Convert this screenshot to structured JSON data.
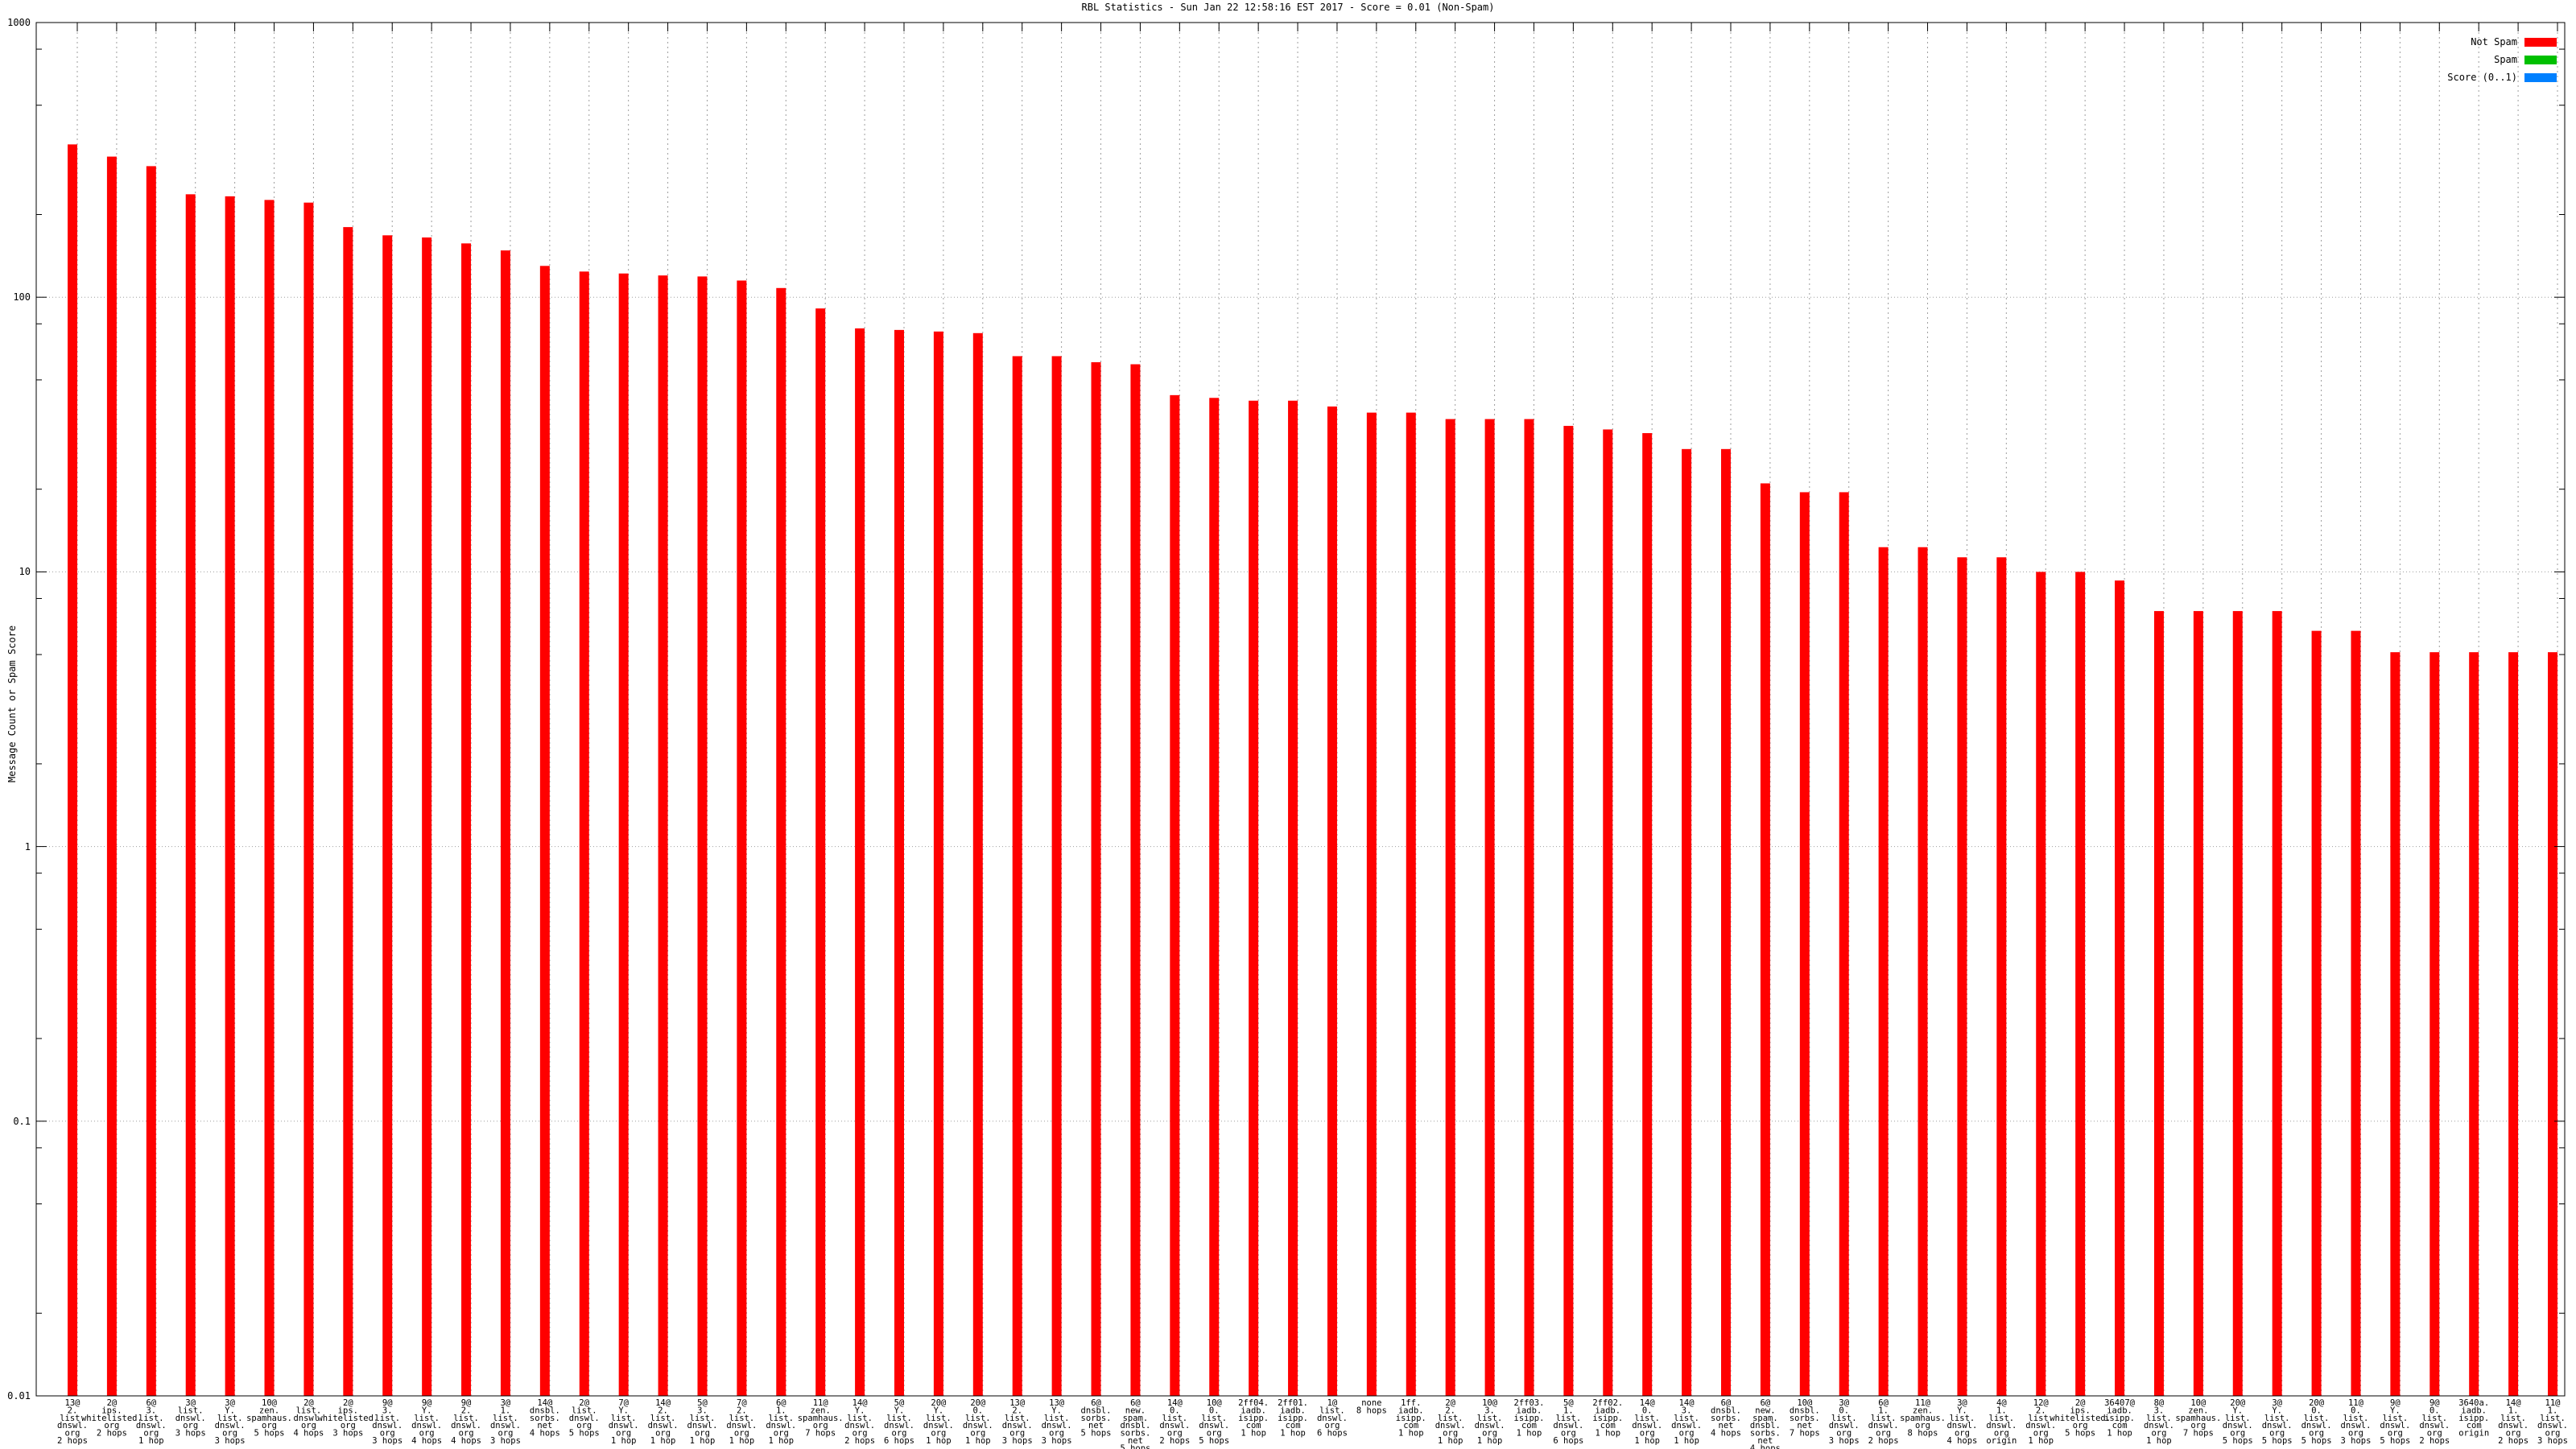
{
  "title": "RBL Statistics - Sun Jan 22 12:58:16 EST 2017 - Score = 0.01 (Non-Spam)",
  "y_axis": {
    "label": "Message Count or Spam Score",
    "ticks": [
      "1000",
      "100",
      "10",
      "1",
      "0.1",
      "0.01"
    ]
  },
  "legend": [
    {
      "label": "Not Spam",
      "color": "#ff0000"
    },
    {
      "label": "Spam",
      "color": "#00c000"
    },
    {
      "label": "Score (0..1)",
      "color": "#0080ff"
    }
  ],
  "chart_data": {
    "type": "bar",
    "title": "RBL Statistics - Sun Jan 22 12:58:16 EST 2017 - Score = 0.01 (Non-Spam)",
    "xlabel": "",
    "ylabel": "Message Count or Spam Score",
    "yscale": "log",
    "ylim": [
      0.01,
      1000
    ],
    "grid": true,
    "legend_position": "top-right",
    "bar_color": "#ff0000",
    "categories": [
      [
        "13@",
        "2.",
        "list.",
        "dnswl.",
        "org",
        "2 hops"
      ],
      [
        "2@",
        "ips.",
        "whitelisted.",
        "org",
        "2 hops"
      ],
      [
        "6@",
        "3.",
        "list.",
        "dnswl.",
        "org",
        "1 hop"
      ],
      [
        "3@",
        "list.",
        "dnswl.",
        "org",
        "3 hops"
      ],
      [
        "3@",
        "Y.",
        "list.",
        "dnswl.",
        "org",
        "3 hops"
      ],
      [
        "10@",
        "zen.",
        "spamhaus.",
        "org",
        "5 hops"
      ],
      [
        "2@",
        "list.",
        "dnswl.",
        "org",
        "4 hops"
      ],
      [
        "2@",
        "ips.",
        "whitelisted.",
        "org",
        "3 hops"
      ],
      [
        "9@",
        "3.",
        "list.",
        "dnswl.",
        "org",
        "3 hops"
      ],
      [
        "9@",
        "Y.",
        "list.",
        "dnswl.",
        "org",
        "4 hops"
      ],
      [
        "9@",
        "2.",
        "list.",
        "dnswl.",
        "org",
        "4 hops"
      ],
      [
        "3@",
        "1.",
        "list.",
        "dnswl.",
        "org",
        "3 hops"
      ],
      [
        "14@",
        "dnsbl.",
        "sorbs.",
        "net",
        "4 hops"
      ],
      [
        "2@",
        "list.",
        "dnswl.",
        "org",
        "5 hops"
      ],
      [
        "7@",
        "Y.",
        "list.",
        "dnswl.",
        "org",
        "1 hop"
      ],
      [
        "14@",
        "2.",
        "list.",
        "dnswl.",
        "org",
        "1 hop"
      ],
      [
        "5@",
        "3.",
        "list.",
        "dnswl.",
        "org",
        "1 hop"
      ],
      [
        "7@",
        "2.",
        "list.",
        "dnswl.",
        "org",
        "1 hop"
      ],
      [
        "6@",
        "1.",
        "list.",
        "dnswl.",
        "org",
        "1 hop"
      ],
      [
        "11@",
        "zen.",
        "spamhaus.",
        "org",
        "7 hops"
      ],
      [
        "14@",
        "Y.",
        "list.",
        "dnswl.",
        "org",
        "2 hops"
      ],
      [
        "5@",
        "Y.",
        "list.",
        "dnswl.",
        "org",
        "6 hops"
      ],
      [
        "20@",
        "Y.",
        "list.",
        "dnswl.",
        "org",
        "1 hop"
      ],
      [
        "20@",
        "0.",
        "list.",
        "dnswl.",
        "org",
        "1 hop"
      ],
      [
        "13@",
        "2.",
        "list.",
        "dnswl.",
        "org",
        "3 hops"
      ],
      [
        "13@",
        "Y.",
        "list.",
        "dnswl.",
        "org",
        "3 hops"
      ],
      [
        "6@",
        "dnsbl.",
        "sorbs.",
        "net",
        "5 hops"
      ],
      [
        "6@",
        "new.",
        "spam.",
        "dnsbl.",
        "sorbs.",
        "net",
        "5 hops"
      ],
      [
        "14@",
        "0.",
        "list.",
        "dnswl.",
        "org",
        "2 hops"
      ],
      [
        "10@",
        "0.",
        "list.",
        "dnswl.",
        "org",
        "5 hops"
      ],
      [
        "2ff04.",
        "iadb.",
        "isipp.",
        "com",
        "1 hop"
      ],
      [
        "2ff01.",
        "iadb.",
        "isipp.",
        "com",
        "1 hop"
      ],
      [
        "1@",
        "list.",
        "dnswl.",
        "org",
        "6 hops"
      ],
      [
        "none",
        "8 hops"
      ],
      [
        "1ff.",
        "iadb.",
        "isipp.",
        "com",
        "1 hop"
      ],
      [
        "2@",
        "2.",
        "list.",
        "dnswl.",
        "org",
        "1 hop"
      ],
      [
        "10@",
        "3.",
        "list.",
        "dnswl.",
        "org",
        "1 hop"
      ],
      [
        "2ff03.",
        "iadb.",
        "isipp.",
        "com",
        "1 hop"
      ],
      [
        "5@",
        "1.",
        "list.",
        "dnswl.",
        "org",
        "6 hops"
      ],
      [
        "2ff02.",
        "iadb.",
        "isipp.",
        "com",
        "1 hop"
      ],
      [
        "14@",
        "0.",
        "list.",
        "dnswl.",
        "org",
        "1 hop"
      ],
      [
        "14@",
        "3.",
        "list.",
        "dnswl.",
        "org",
        "1 hop"
      ],
      [
        "6@",
        "dnsbl.",
        "sorbs.",
        "net",
        "4 hops"
      ],
      [
        "6@",
        "new.",
        "spam.",
        "dnsbl.",
        "sorbs.",
        "net",
        "4 hops"
      ],
      [
        "10@",
        "dnsbl.",
        "sorbs.",
        "net",
        "7 hops"
      ],
      [
        "3@",
        "0.",
        "list.",
        "dnswl.",
        "org",
        "3 hops"
      ],
      [
        "6@",
        "1.",
        "list.",
        "dnswl.",
        "org",
        "2 hops"
      ],
      [
        "11@",
        "zen.",
        "spamhaus.",
        "org",
        "8 hops"
      ],
      [
        "3@",
        "Y.",
        "list.",
        "dnswl.",
        "org",
        "4 hops"
      ],
      [
        "4@",
        "1.",
        "list.",
        "dnswl.",
        "org",
        "origin"
      ],
      [
        "12@",
        "2.",
        "list.",
        "dnswl.",
        "org",
        "1 hop"
      ],
      [
        "2@",
        "ips.",
        "whitelisted.",
        "org",
        "5 hops"
      ],
      [
        "36407@",
        "iadb.",
        "isipp.",
        "com",
        "1 hop"
      ],
      [
        "8@",
        "3.",
        "list.",
        "dnswl.",
        "org",
        "1 hop"
      ],
      [
        "10@",
        "zen.",
        "spamhaus.",
        "org",
        "7 hops"
      ],
      [
        "20@",
        "Y.",
        "list.",
        "dnswl.",
        "org",
        "5 hops"
      ],
      [
        "3@",
        "Y.",
        "list.",
        "dnswl.",
        "org",
        "5 hops"
      ],
      [
        "20@",
        "0.",
        "list.",
        "dnswl.",
        "org",
        "5 hops"
      ],
      [
        "11@",
        "0.",
        "list.",
        "dnswl.",
        "org",
        "3 hops"
      ],
      [
        "9@",
        "Y.",
        "list.",
        "dnswl.",
        "org",
        "5 hops"
      ],
      [
        "9@",
        "0.",
        "list.",
        "dnswl.",
        "org",
        "2 hops"
      ],
      [
        "3640a.",
        "iadb.",
        "isipp.",
        "com",
        "origin"
      ],
      [
        "14@",
        "1.",
        "list.",
        "dnswl.",
        "org",
        "2 hops"
      ],
      [
        "11@",
        "1.",
        "list.",
        "dnswl.",
        "org",
        "3 hops"
      ]
    ],
    "series": [
      {
        "name": "Not Spam",
        "color": "#ff0000",
        "values": [
          360,
          325,
          300,
          237,
          233,
          226,
          221,
          180,
          168,
          165,
          157,
          148,
          130,
          124,
          122,
          120,
          119,
          115,
          108,
          91,
          77,
          76,
          75,
          74,
          61,
          61,
          58,
          57,
          44,
          43,
          42,
          42,
          40,
          38,
          38,
          36,
          36,
          36,
          34,
          33,
          32,
          28,
          28,
          21,
          19.5,
          19.5,
          12.3,
          12.3,
          11.3,
          11.3,
          10,
          10,
          9.3,
          7.2,
          7.2,
          7.2,
          7.2,
          6.1,
          6.1,
          5.1,
          5.1,
          5.1,
          5.1,
          5.1
        ]
      }
    ]
  }
}
